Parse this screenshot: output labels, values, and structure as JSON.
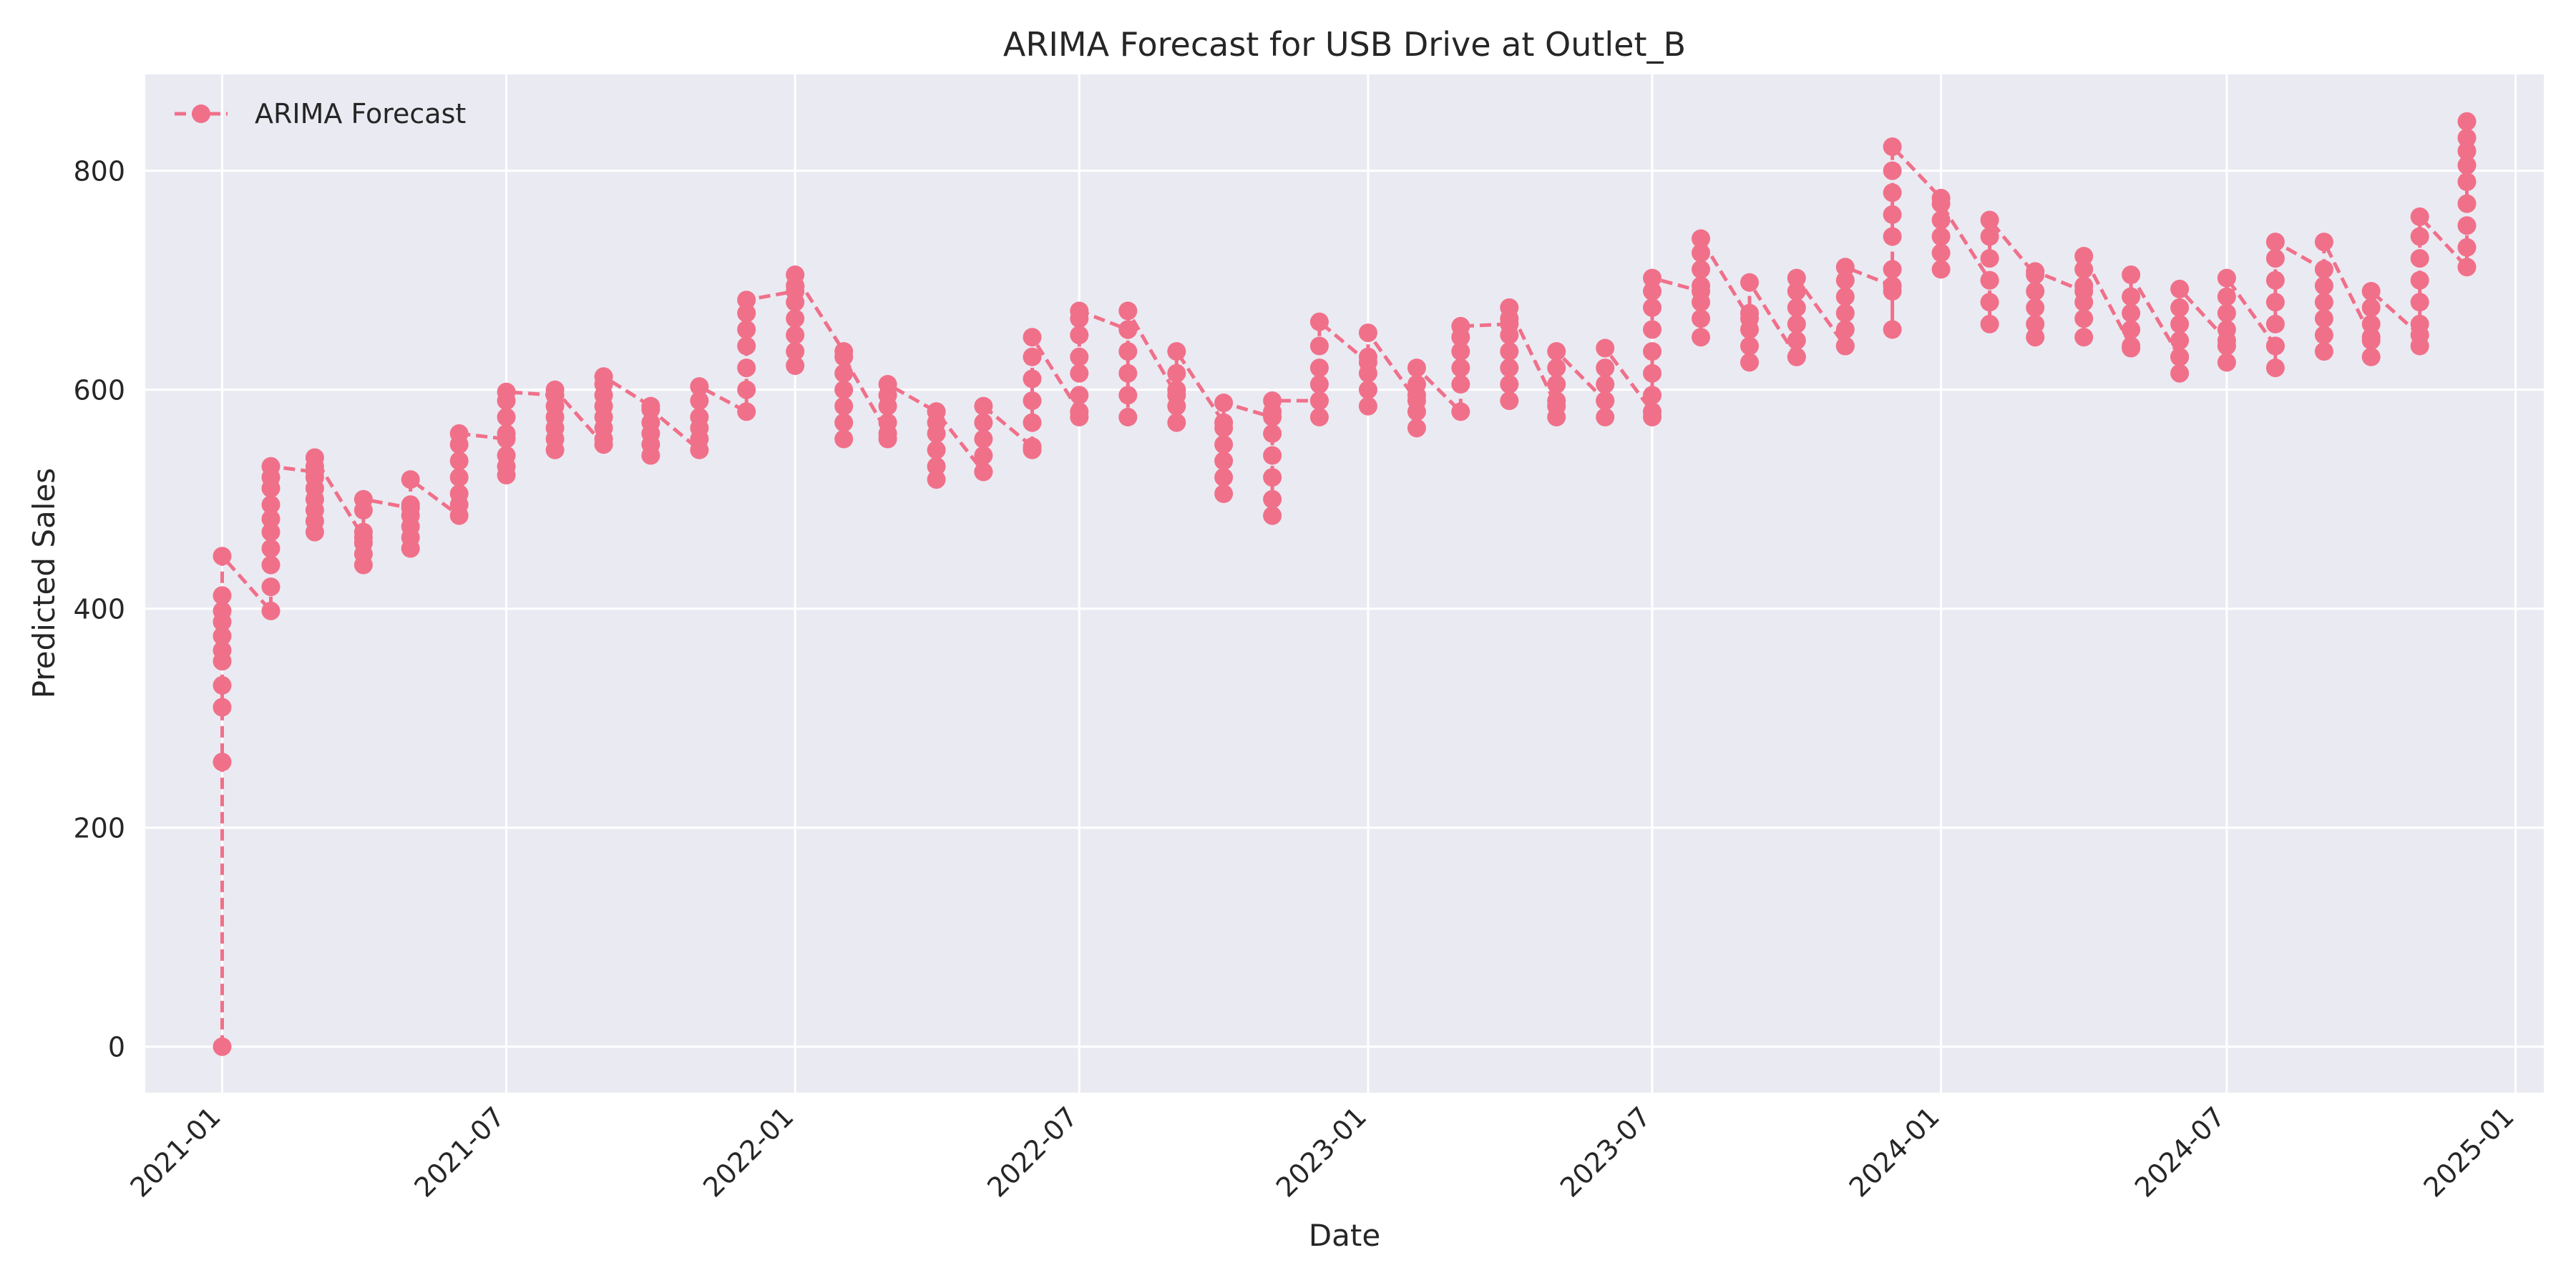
{
  "chart_data": {
    "type": "line",
    "title": "ARIMA Forecast for USB Drive at Outlet_B",
    "xlabel": "Date",
    "ylabel": "Predicted Sales",
    "x_ticks": [
      "2021-01",
      "2021-07",
      "2022-01",
      "2022-07",
      "2023-01",
      "2023-07",
      "2024-01",
      "2024-07",
      "2025-01"
    ],
    "y_ticks": [
      0,
      200,
      400,
      600,
      800
    ],
    "xlim": [
      "2020-11-13",
      "2025-01-19"
    ],
    "ylim": [
      -42,
      888
    ],
    "grid": true,
    "legend": {
      "position": "top-left",
      "entries": [
        "ARIMA Forecast"
      ]
    },
    "colors": {
      "series": "#f0708a",
      "plot_bg": "#eaeaf2",
      "grid": "#ffffff"
    },
    "series": [
      {
        "name": "ARIMA Forecast",
        "style": "dashed-line-with-markers",
        "points": [
          {
            "x": "2021-01-01",
            "y": [
              0,
              260,
              310,
              330,
              352,
              362,
              375,
              388,
              398,
              412,
              448
            ]
          },
          {
            "x": "2021-02-01",
            "y": [
              398,
              420,
              440,
              455,
              470,
              482,
              495,
              510,
              520,
              530
            ]
          },
          {
            "x": "2021-03-01",
            "y": [
              525,
              470,
              480,
              490,
              500,
              510,
              520,
              530,
              538
            ]
          },
          {
            "x": "2021-04-01",
            "y": [
              465,
              440,
              450,
              460,
              470,
              490,
              500
            ]
          },
          {
            "x": "2021-05-01",
            "y": [
              492,
              455,
              465,
              475,
              485,
              495,
              518
            ]
          },
          {
            "x": "2021-06-01",
            "y": [
              485,
              495,
              505,
              520,
              535,
              550,
              560
            ]
          },
          {
            "x": "2021-07-01",
            "y": [
              555,
              522,
              530,
              540,
              560,
              575,
              590,
              598
            ]
          },
          {
            "x": "2021-08-01",
            "y": [
              595,
              545,
              555,
              565,
              575,
              585,
              600
            ]
          },
          {
            "x": "2021-09-01",
            "y": [
              550,
              555,
              565,
              575,
              585,
              595,
              605,
              612
            ]
          },
          {
            "x": "2021-10-01",
            "y": [
              585,
              540,
              550,
              560,
              570,
              582
            ]
          },
          {
            "x": "2021-11-01",
            "y": [
              545,
              555,
              565,
              575,
              590,
              603
            ]
          },
          {
            "x": "2021-12-01",
            "y": [
              580,
              600,
              620,
              640,
              655,
              670,
              682
            ]
          },
          {
            "x": "2022-01-01",
            "y": [
              690,
              622,
              635,
              650,
              665,
              680,
              695,
              705
            ]
          },
          {
            "x": "2022-02-01",
            "y": [
              635,
              555,
              570,
              585,
              600,
              615,
              630
            ]
          },
          {
            "x": "2022-03-01",
            "y": [
              560,
              555,
              570,
              585,
              595,
              605
            ]
          },
          {
            "x": "2022-04-01",
            "y": [
              580,
              518,
              530,
              545,
              560,
              570,
              580
            ]
          },
          {
            "x": "2022-05-01",
            "y": [
              525,
              525,
              540,
              555,
              570,
              585
            ]
          },
          {
            "x": "2022-06-01",
            "y": [
              548,
              545,
              570,
              590,
              610,
              630,
              648
            ]
          },
          {
            "x": "2022-07-01",
            "y": [
              580,
              575,
              595,
              615,
              630,
              650,
              665,
              672
            ]
          },
          {
            "x": "2022-08-01",
            "y": [
              655,
              575,
              595,
              615,
              635,
              655,
              672
            ]
          },
          {
            "x": "2022-09-01",
            "y": [
              595,
              570,
              585,
              600,
              615,
              635
            ]
          },
          {
            "x": "2022-10-01",
            "y": [
              570,
              505,
              520,
              535,
              550,
              565,
              588
            ]
          },
          {
            "x": "2022-11-01",
            "y": [
              575,
              485,
              500,
              520,
              540,
              560,
              580,
              590
            ]
          },
          {
            "x": "2022-12-01",
            "y": [
              590,
              575,
              590,
              605,
              620,
              640,
              662
            ]
          },
          {
            "x": "2023-01-01",
            "y": [
              625,
              585,
              600,
              615,
              630,
              652
            ]
          },
          {
            "x": "2023-02-01",
            "y": [
              590,
              565,
              580,
              595,
              605,
              620
            ]
          },
          {
            "x": "2023-03-01",
            "y": [
              580,
              605,
              620,
              635,
              648,
              658
            ]
          },
          {
            "x": "2023-04-01",
            "y": [
              660,
              590,
              605,
              620,
              635,
              650,
              665,
              675
            ]
          },
          {
            "x": "2023-05-01",
            "y": [
              585,
              575,
              590,
              605,
              620,
              635
            ]
          },
          {
            "x": "2023-06-01",
            "y": [
              590,
              575,
              590,
              605,
              620,
              638
            ]
          },
          {
            "x": "2023-07-01",
            "y": [
              580,
              575,
              595,
              615,
              635,
              655,
              675,
              690,
              702
            ]
          },
          {
            "x": "2023-08-01",
            "y": [
              690,
              648,
              665,
              680,
              695,
              710,
              725,
              738
            ]
          },
          {
            "x": "2023-09-01",
            "y": [
              665,
              625,
              640,
              655,
              670,
              698
            ]
          },
          {
            "x": "2023-10-01",
            "y": [
              630,
              630,
              645,
              660,
              675,
              690,
              702
            ]
          },
          {
            "x": "2023-11-01",
            "y": [
              640,
              640,
              655,
              670,
              685,
              700,
              712
            ]
          },
          {
            "x": "2023-12-01",
            "y": [
              695,
              655,
              690,
              710,
              740,
              760,
              780,
              800,
              822
            ]
          },
          {
            "x": "2024-01-01",
            "y": [
              775,
              710,
              725,
              740,
              755,
              770
            ]
          },
          {
            "x": "2024-02-01",
            "y": [
              700,
              660,
              680,
              700,
              720,
              740,
              755
            ]
          },
          {
            "x": "2024-03-01",
            "y": [
              705,
              648,
              660,
              675,
              690,
              708
            ]
          },
          {
            "x": "2024-04-01",
            "y": [
              690,
              648,
              665,
              680,
              695,
              710,
              722
            ]
          },
          {
            "x": "2024-05-01",
            "y": [
              640,
              638,
              655,
              670,
              685,
              705
            ]
          },
          {
            "x": "2024-06-01",
            "y": [
              630,
              615,
              630,
              645,
              660,
              675,
              692
            ]
          },
          {
            "x": "2024-07-01",
            "y": [
              645,
              625,
              640,
              655,
              670,
              685,
              702
            ]
          },
          {
            "x": "2024-08-01",
            "y": [
              640,
              620,
              640,
              660,
              680,
              700,
              720,
              735
            ]
          },
          {
            "x": "2024-09-01",
            "y": [
              710,
              635,
              650,
              665,
              680,
              695,
              735
            ]
          },
          {
            "x": "2024-10-01",
            "y": [
              648,
              630,
              645,
              660,
              675,
              690
            ]
          },
          {
            "x": "2024-11-01",
            "y": [
              650,
              640,
              660,
              680,
              700,
              720,
              740,
              758
            ]
          },
          {
            "x": "2024-12-01",
            "y": [
              712,
              730,
              750,
              770,
              790,
              805,
              818,
              830,
              845
            ]
          }
        ]
      }
    ]
  }
}
